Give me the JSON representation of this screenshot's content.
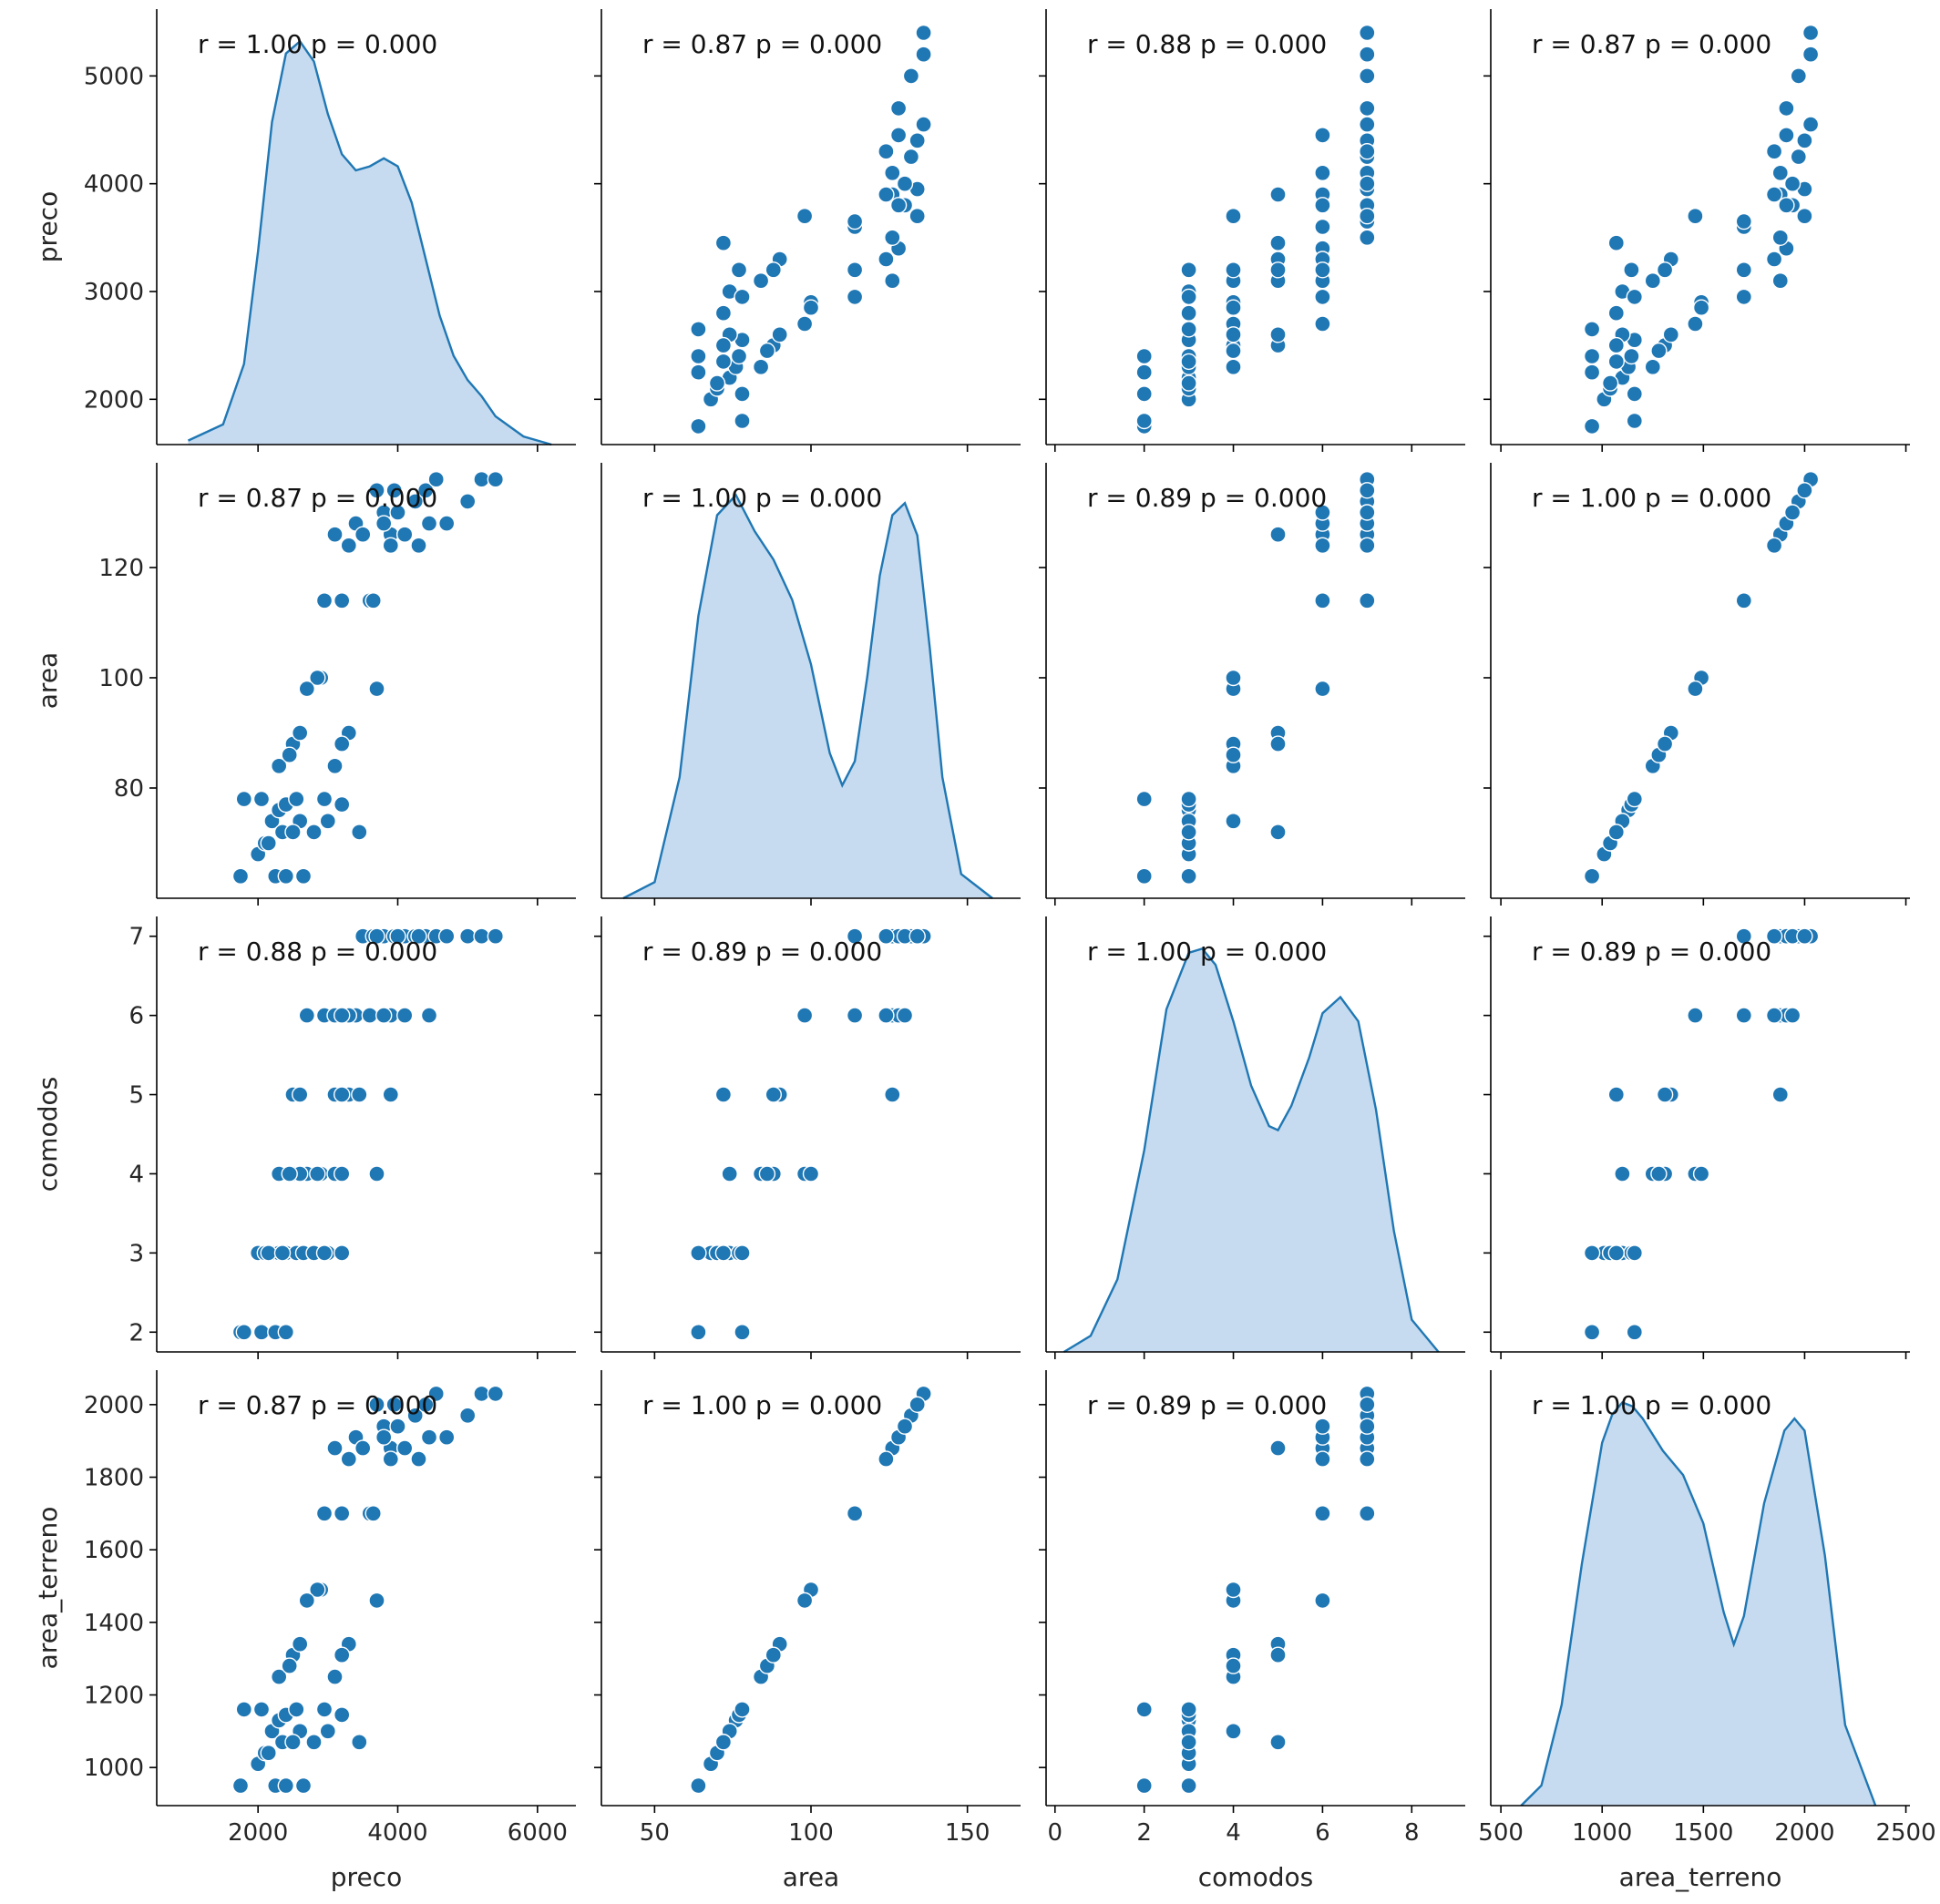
{
  "figure": {
    "variables": [
      "preco",
      "area",
      "comodos",
      "area_terreno"
    ],
    "colors": {
      "series": "#1f77b4",
      "kde_fill": "#c6dbef",
      "marker_edge": "#ffffff"
    }
  },
  "chart_data": {
    "type": "scatter",
    "kind": "pairplot",
    "diag_kind": "kde",
    "variables": [
      "preco",
      "area",
      "comodos",
      "area_terreno"
    ],
    "axes": {
      "preco": {
        "label": "preco",
        "lim": [
          550,
          6550
        ],
        "ticks": [
          2000,
          4000,
          6000
        ],
        "yticks": [
          2000,
          3000,
          4000,
          5000
        ],
        "ylim": [
          1580,
          5620
        ]
      },
      "area": {
        "label": "area",
        "lim": [
          33,
          167
        ],
        "ticks": [
          50,
          100,
          150
        ],
        "yticks": [
          80,
          100,
          120
        ],
        "ylim": [
          60,
          139
        ]
      },
      "comodos": {
        "label": "comodos",
        "lim": [
          -0.2,
          9.2
        ],
        "ticks": [
          0,
          2,
          4,
          6,
          8
        ],
        "yticks": [
          2,
          3,
          4,
          5,
          6,
          7
        ],
        "ylim": [
          1.75,
          7.25
        ]
      },
      "area_terreno": {
        "label": "area_terreno",
        "lim": [
          450,
          2520
        ],
        "ticks": [
          500,
          1000,
          1500,
          2000,
          2500
        ],
        "yticks": [
          1000,
          1200,
          1400,
          1600,
          1800,
          2000
        ],
        "ylim": [
          895,
          2095
        ]
      }
    },
    "annotations": [
      [
        "r = 1.00  p = 0.000",
        "r = 0.87  p = 0.000",
        "r = 0.88  p = 0.000",
        "r = 0.87  p = 0.000"
      ],
      [
        "r = 0.87  p = 0.000",
        "r = 1.00  p = 0.000",
        "r = 0.89  p = 0.000",
        "r = 1.00  p = 0.000"
      ],
      [
        "r = 0.88  p = 0.000",
        "r = 0.89  p = 0.000",
        "r = 1.00  p = 0.000",
        "r = 0.89  p = 0.000"
      ],
      [
        "r = 0.87  p = 0.000",
        "r = 1.00  p = 0.000",
        "r = 0.89  p = 0.000",
        "r = 1.00  p = 0.000"
      ]
    ],
    "rows": [
      [
        1750,
        64,
        2
      ],
      [
        1800,
        78,
        2
      ],
      [
        2050,
        78,
        2
      ],
      [
        2250,
        64,
        2
      ],
      [
        2400,
        64,
        2
      ],
      [
        2000,
        68,
        3
      ],
      [
        2100,
        70,
        3
      ],
      [
        2200,
        74,
        3
      ],
      [
        2300,
        76,
        3
      ],
      [
        2400,
        77,
        3
      ],
      [
        2550,
        78,
        3
      ],
      [
        2650,
        64,
        3
      ],
      [
        2800,
        72,
        3
      ],
      [
        3000,
        74,
        3
      ],
      [
        3200,
        77,
        3
      ],
      [
        2150,
        70,
        3
      ],
      [
        2350,
        72,
        3
      ],
      [
        2950,
        78,
        3
      ],
      [
        2300,
        84,
        4
      ],
      [
        2500,
        88,
        4
      ],
      [
        2700,
        98,
        4
      ],
      [
        2900,
        100,
        4
      ],
      [
        3100,
        84,
        4
      ],
      [
        3200,
        88,
        4
      ],
      [
        2600,
        74,
        4
      ],
      [
        3700,
        98,
        4
      ],
      [
        2850,
        100,
        4
      ],
      [
        2450,
        86,
        4
      ],
      [
        2500,
        72,
        5
      ],
      [
        2600,
        90,
        5
      ],
      [
        3100,
        126,
        5
      ],
      [
        3300,
        90,
        5
      ],
      [
        3450,
        72,
        5
      ],
      [
        3900,
        126,
        5
      ],
      [
        3200,
        88,
        5
      ],
      [
        2700,
        98,
        6
      ],
      [
        2950,
        114,
        6
      ],
      [
        3100,
        126,
        6
      ],
      [
        3400,
        128,
        6
      ],
      [
        3600,
        114,
        6
      ],
      [
        3900,
        124,
        6
      ],
      [
        4100,
        126,
        6
      ],
      [
        4450,
        128,
        6
      ],
      [
        3800,
        130,
        6
      ],
      [
        3300,
        124,
        6
      ],
      [
        3200,
        114,
        6
      ],
      [
        3500,
        126,
        7
      ],
      [
        3650,
        114,
        7
      ],
      [
        3800,
        128,
        7
      ],
      [
        3950,
        134,
        7
      ],
      [
        4100,
        126,
        7
      ],
      [
        4250,
        132,
        7
      ],
      [
        4400,
        134,
        7
      ],
      [
        4550,
        136,
        7
      ],
      [
        4700,
        128,
        7
      ],
      [
        5000,
        132,
        7
      ],
      [
        5200,
        136,
        7
      ],
      [
        5400,
        136,
        7
      ],
      [
        4000,
        130,
        7
      ],
      [
        4300,
        124,
        7
      ],
      [
        3700,
        134,
        7
      ]
    ],
    "kde": {
      "preco": {
        "x": [
          1000,
          1500,
          1800,
          2000,
          2200,
          2400,
          2600,
          2800,
          3000,
          3200,
          3400,
          3600,
          3800,
          4000,
          4200,
          4400,
          4600,
          4800,
          5000,
          5200,
          5400,
          5800,
          6200
        ],
        "density": [
          0.01,
          0.05,
          0.2,
          0.48,
          0.8,
          0.97,
          1.0,
          0.95,
          0.82,
          0.72,
          0.68,
          0.69,
          0.71,
          0.69,
          0.6,
          0.46,
          0.32,
          0.22,
          0.16,
          0.12,
          0.07,
          0.02,
          0.0
        ]
      },
      "area": {
        "x": [
          40,
          50,
          58,
          64,
          70,
          76,
          82,
          88,
          94,
          100,
          106,
          110,
          114,
          118,
          122,
          126,
          130,
          134,
          138,
          142,
          148,
          158
        ],
        "density": [
          0.0,
          0.04,
          0.3,
          0.7,
          0.95,
          1.0,
          0.91,
          0.84,
          0.74,
          0.58,
          0.36,
          0.28,
          0.34,
          0.55,
          0.8,
          0.95,
          0.98,
          0.9,
          0.62,
          0.3,
          0.06,
          0.0
        ]
      },
      "comodos": {
        "x": [
          0.2,
          0.8,
          1.4,
          2.0,
          2.5,
          3.0,
          3.3,
          3.6,
          4.0,
          4.4,
          4.8,
          5.0,
          5.3,
          5.7,
          6.0,
          6.4,
          6.8,
          7.2,
          7.6,
          8.0,
          8.6
        ],
        "density": [
          0.0,
          0.04,
          0.18,
          0.5,
          0.85,
          0.99,
          1.0,
          0.96,
          0.82,
          0.66,
          0.56,
          0.55,
          0.61,
          0.73,
          0.84,
          0.88,
          0.82,
          0.6,
          0.3,
          0.08,
          0.0
        ]
      },
      "area_terreno": {
        "x": [
          600,
          700,
          800,
          900,
          1000,
          1050,
          1100,
          1150,
          1200,
          1300,
          1400,
          1500,
          1600,
          1650,
          1700,
          1800,
          1900,
          1950,
          2000,
          2100,
          2200,
          2350
        ],
        "density": [
          0.0,
          0.05,
          0.25,
          0.6,
          0.9,
          0.97,
          1.0,
          0.99,
          0.96,
          0.88,
          0.82,
          0.7,
          0.48,
          0.4,
          0.47,
          0.75,
          0.93,
          0.96,
          0.93,
          0.62,
          0.2,
          0.0
        ]
      }
    }
  }
}
